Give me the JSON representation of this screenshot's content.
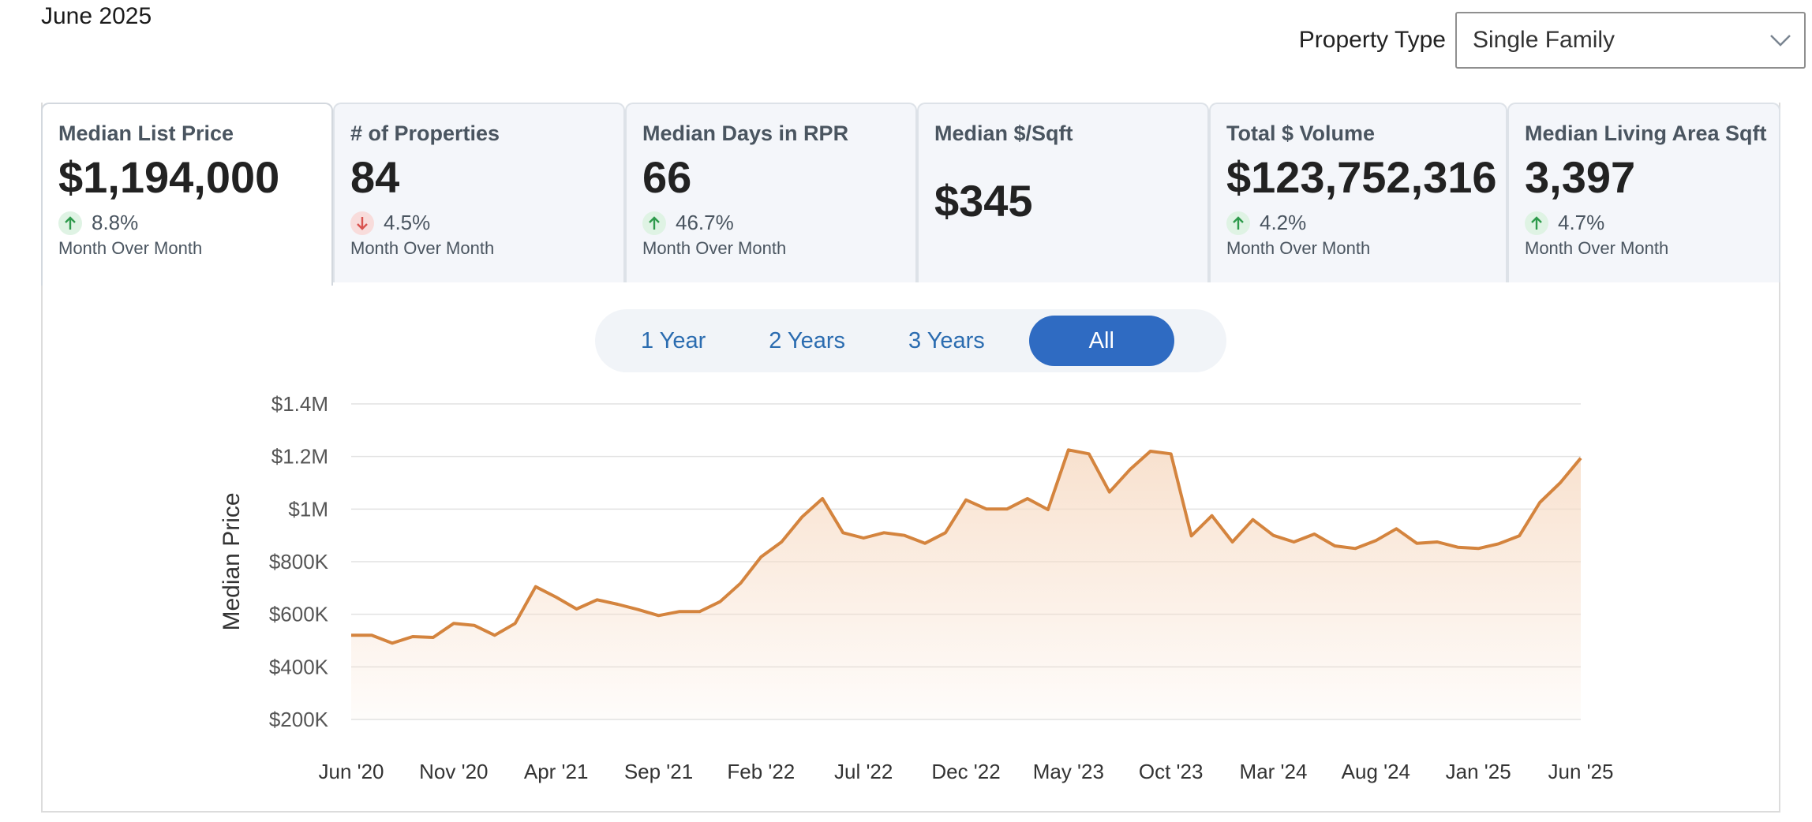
{
  "header": {
    "date": "June 2025"
  },
  "property_type": {
    "label": "Property Type",
    "selected": "Single Family"
  },
  "cards": [
    {
      "title": "Median List Price",
      "value": "$1,194,000",
      "direction": "up",
      "change": "8.8%",
      "caption": "Month Over Month"
    },
    {
      "title": "# of Properties",
      "value": "84",
      "direction": "down",
      "change": "4.5%",
      "caption": "Month Over Month"
    },
    {
      "title": "Median Days in RPR",
      "value": "66",
      "direction": "up",
      "change": "46.7%",
      "caption": "Month Over Month"
    },
    {
      "title": "Median $/Sqft",
      "value": "$345"
    },
    {
      "title": "Total $ Volume",
      "value": "$123,752,316",
      "direction": "up",
      "change": "4.2%",
      "caption": "Month Over Month"
    },
    {
      "title": "Median Living Area Sqft",
      "value": "3,397",
      "direction": "up",
      "change": "4.7%",
      "caption": "Month Over Month"
    }
  ],
  "ranges": {
    "items": [
      "1 Year",
      "2 Years",
      "3 Years",
      "All"
    ],
    "active": "All"
  },
  "colors": {
    "line": "#d4843e",
    "fill": "#f7dcc6",
    "accent": "#2f6bc2",
    "up": "#2e9a4c",
    "down": "#d9534f"
  },
  "chart_data": {
    "type": "area",
    "ylabel": "Median Price",
    "ylim": [
      200000,
      1400000
    ],
    "yticks": [
      200000,
      400000,
      600000,
      800000,
      1000000,
      1200000,
      1400000
    ],
    "ytick_labels": [
      "$200K",
      "$400K",
      "$600K",
      "$800K",
      "$1M",
      "$1.2M",
      "$1.4M"
    ],
    "xticks": [
      "Jun '20",
      "Nov '20",
      "Apr '21",
      "Sep '21",
      "Feb '22",
      "Jul '22",
      "Dec '22",
      "May '23",
      "Oct '23",
      "Mar '24",
      "Aug '24",
      "Jan '25",
      "Jun '25"
    ],
    "grid": true,
    "values": [
      520000,
      520000,
      490000,
      515000,
      512000,
      565000,
      558000,
      520000,
      565000,
      705000,
      665000,
      620000,
      655000,
      638000,
      618000,
      595000,
      610000,
      610000,
      648000,
      718000,
      818000,
      875000,
      970000,
      1040000,
      910000,
      890000,
      910000,
      900000,
      870000,
      910000,
      1035000,
      1000000,
      1000000,
      1040000,
      998000,
      1225000,
      1210000,
      1065000,
      1150000,
      1220000,
      1210000,
      898000,
      975000,
      875000,
      960000,
      900000,
      875000,
      905000,
      860000,
      850000,
      880000,
      925000,
      870000,
      875000,
      855000,
      850000,
      868000,
      898000,
      1025000,
      1100000,
      1194000
    ]
  }
}
